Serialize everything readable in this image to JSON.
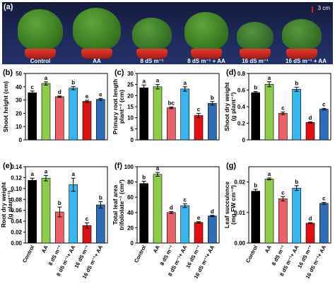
{
  "photo": {
    "letter": "(a)",
    "scale": "3 cm",
    "captions": [
      "Control",
      "AA",
      "8 dS m⁻¹",
      "8 dS m⁻¹ + AA",
      "16 dS m⁻¹",
      "16 dS m⁻¹ + AA"
    ]
  },
  "colors": [
    "#000000",
    "#8ccc4a",
    "#ee6068",
    "#36b6ec",
    "#dd1111",
    "#2e6db5"
  ],
  "chart_data": [
    {
      "type": "bar",
      "panel": "(b)",
      "ylabel": "Shoot height (cm)",
      "ylim": [
        0,
        50
      ],
      "yticks": [
        0,
        10,
        20,
        30,
        40,
        50
      ],
      "categories": [
        "Control",
        "AA",
        "8 dS m⁻¹",
        "8 dS m⁻¹+ AA",
        "16 dS m⁻¹",
        "16 dS m⁻¹+ AA"
      ],
      "values": [
        35.5,
        42.5,
        32.5,
        39,
        29,
        30.5
      ],
      "errors": [
        1.3,
        1.2,
        0.5,
        1.2,
        0.8,
        0.7
      ],
      "letters": [
        "c",
        "a",
        "d",
        "b",
        "e",
        "e"
      ]
    },
    {
      "type": "bar",
      "panel": "(c)",
      "ylabel": [
        "Primary root length",
        "plant⁻¹ (cm)"
      ],
      "ylim": [
        0,
        30
      ],
      "yticks": [
        0,
        5,
        10,
        15,
        20,
        25,
        30
      ],
      "categories": [
        "Control",
        "AA",
        "8 dS m⁻¹",
        "8 dS m⁻¹+ AA",
        "16 dS m⁻¹",
        "16 dS m⁻¹+ AA"
      ],
      "values": [
        23.5,
        24,
        14.5,
        23,
        11,
        16.5
      ],
      "errors": [
        1.3,
        1.0,
        0.4,
        1.0,
        1.0,
        0.8
      ],
      "letters": [
        "a",
        "a",
        "bc",
        "a",
        "c",
        "b"
      ]
    },
    {
      "type": "bar",
      "panel": "(d)",
      "ylabel": [
        "Shoot dry weight",
        "(g plant⁻¹)"
      ],
      "ylim": [
        0,
        0.8
      ],
      "yticks": [
        0,
        0.2,
        0.4,
        0.6,
        0.8
      ],
      "categories": [
        "Control",
        "AA",
        "8 dS m⁻¹",
        "8 dS m⁻¹+ AA",
        "16 dS m⁻¹",
        "16 dS m⁻¹+ AA"
      ],
      "values": [
        0.57,
        0.67,
        0.32,
        0.61,
        0.21,
        0.37
      ],
      "errors": [
        0.012,
        0.03,
        0.015,
        0.025,
        0.008,
        0.01
      ],
      "letters": [
        "b",
        "a",
        "c",
        "b",
        "d",
        "c"
      ]
    },
    {
      "type": "bar",
      "panel": "(e)",
      "ylabel": [
        "Root dry weight",
        "(g plant⁻¹)"
      ],
      "ylim": [
        0,
        0.14
      ],
      "yticks": [
        0,
        0.02,
        0.04,
        0.06,
        0.08,
        0.1,
        0.12,
        0.14
      ],
      "ytick_labels": [
        "0.00",
        "0.02",
        "0.04",
        "0.06",
        "0.08",
        "0.10",
        "0.12",
        "0.14"
      ],
      "categories": [
        "Control",
        "AA",
        "8 dS m⁻¹",
        "8 dS m⁻¹+ AA",
        "16 dS m⁻¹",
        "16 dS m⁻¹+ AA"
      ],
      "values": [
        0.115,
        0.119,
        0.057,
        0.107,
        0.032,
        0.07
      ],
      "errors": [
        0.004,
        0.005,
        0.009,
        0.012,
        0.005,
        0.006
      ],
      "letters": [
        "a",
        "a",
        "b",
        "a",
        "c",
        "b"
      ]
    },
    {
      "type": "bar",
      "panel": "(f)",
      "ylabel": [
        "Total leaf area",
        "trifoliolate⁻¹ (cm²)"
      ],
      "ylim": [
        0,
        100
      ],
      "yticks": [
        0,
        20,
        40,
        60,
        80,
        100
      ],
      "categories": [
        "Control",
        "AA",
        "8 dS m⁻¹",
        "8 dS m⁻¹+ AA",
        "16 dS m⁻¹",
        "16 dS m⁻¹+ AA"
      ],
      "values": [
        78,
        90,
        40,
        49,
        27,
        35.5
      ],
      "errors": [
        3,
        2.5,
        1.2,
        2.5,
        1.0,
        0.8
      ],
      "letters": [
        "b",
        "a",
        "d",
        "c",
        "e",
        "d"
      ]
    },
    {
      "type": "bar",
      "panel": "(g)",
      "ylabel": [
        "Leaf succulence",
        "(mg FW cm⁻²)"
      ],
      "ylim": [
        0,
        0.025
      ],
      "yticks": [
        0,
        0.01,
        0.02
      ],
      "ytick_labels": [
        "0.00",
        "0.01",
        "0.02"
      ],
      "categories": [
        "Control",
        "AA",
        "8 dS m⁻¹",
        "8 dS m⁻¹+ AA",
        "16 dS m⁻¹",
        "16 dS m⁻¹+ AA"
      ],
      "values": [
        0.017,
        0.021,
        0.0145,
        0.018,
        0.0065,
        0.013
      ],
      "errors": [
        0.0006,
        0.0003,
        0.0007,
        0.0008,
        0.0002,
        0.0003
      ],
      "letters": [
        "b",
        "a",
        "c",
        "b",
        "d",
        "c"
      ]
    }
  ]
}
